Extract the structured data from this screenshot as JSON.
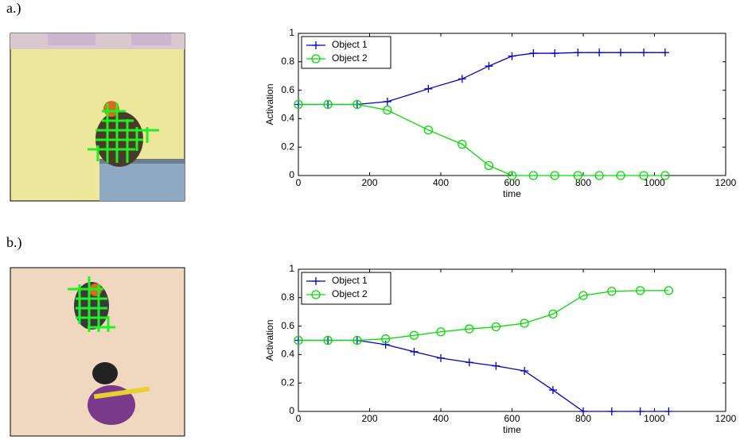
{
  "chart_data": [
    {
      "type": "line",
      "panel_label": "a.)",
      "xlabel": "time",
      "ylabel": "Activation",
      "x": [
        0,
        83,
        165,
        250,
        365,
        460,
        535,
        600,
        660,
        720,
        785,
        845,
        905,
        970,
        1030
      ],
      "series": [
        {
          "name": "Object 1",
          "color": "#0000cc",
          "marker": "plus",
          "values": [
            0.5,
            0.5,
            0.5,
            0.52,
            0.61,
            0.68,
            0.77,
            0.84,
            0.86,
            0.86,
            0.865,
            0.865,
            0.865,
            0.865,
            0.865
          ]
        },
        {
          "name": "Object 2",
          "color": "#00dd00",
          "marker": "circle",
          "values": [
            0.5,
            0.5,
            0.5,
            0.46,
            0.32,
            0.22,
            0.07,
            0,
            0,
            0,
            0,
            0,
            0,
            0,
            0
          ]
        }
      ],
      "xlim": [
        0,
        1200
      ],
      "xticks": [
        0,
        200,
        400,
        600,
        800,
        1000,
        1200
      ],
      "ylim": [
        0,
        1
      ],
      "yticks": [
        0,
        0.2,
        0.4,
        0.6,
        0.8,
        1
      ],
      "grid": false,
      "legend": "upper left"
    },
    {
      "type": "line",
      "panel_label": "b.)",
      "xlabel": "time",
      "ylabel": "Activation",
      "x": [
        0,
        83,
        165,
        245,
        325,
        400,
        480,
        555,
        635,
        715,
        800,
        880,
        960,
        1040
      ],
      "series": [
        {
          "name": "Object 1",
          "color": "#0000cc",
          "marker": "plus",
          "values": [
            0.5,
            0.5,
            0.5,
            0.47,
            0.42,
            0.375,
            0.345,
            0.32,
            0.285,
            0.15,
            0,
            0,
            0,
            0
          ]
        },
        {
          "name": "Object 2",
          "color": "#00dd00",
          "marker": "circle",
          "values": [
            0.5,
            0.5,
            0.5,
            0.51,
            0.535,
            0.56,
            0.58,
            0.595,
            0.62,
            0.685,
            0.815,
            0.845,
            0.85,
            0.85
          ]
        }
      ],
      "xlim": [
        0,
        1200
      ],
      "xticks": [
        0,
        200,
        400,
        600,
        800,
        1000,
        1200
      ],
      "ylim": [
        0,
        1
      ],
      "yticks": [
        0,
        0.2,
        0.4,
        0.6,
        0.8,
        1
      ],
      "grid": false,
      "legend": "upper left"
    }
  ]
}
